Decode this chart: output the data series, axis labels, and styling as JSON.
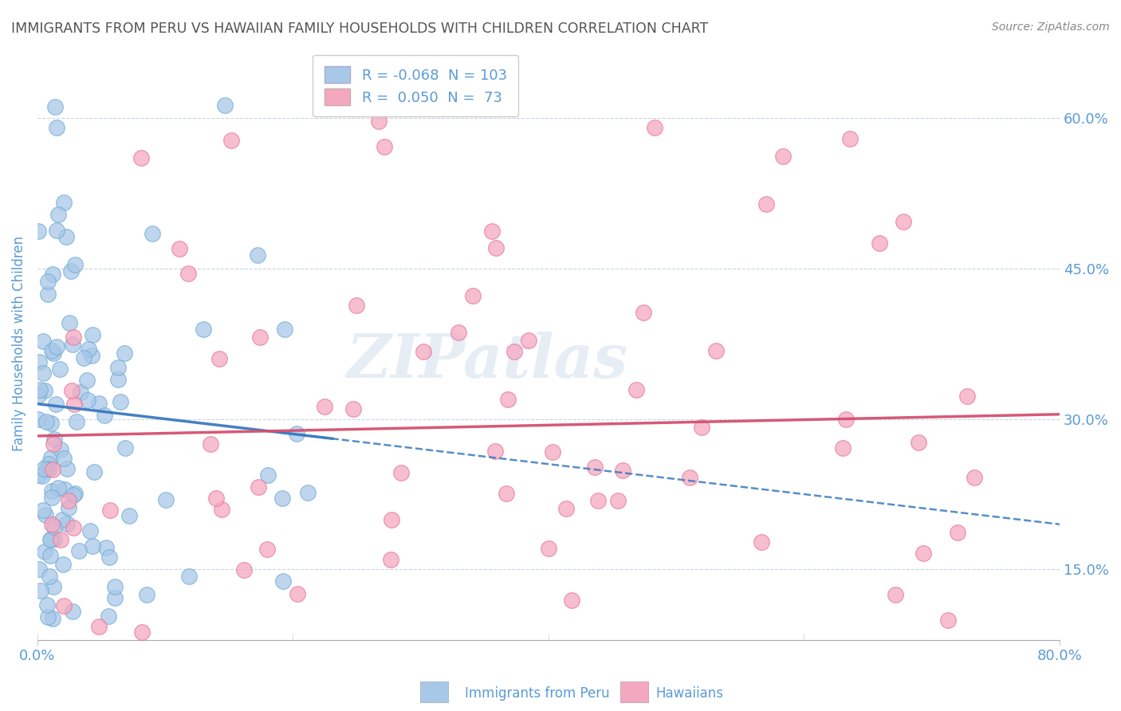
{
  "title": "IMMIGRANTS FROM PERU VS HAWAIIAN FAMILY HOUSEHOLDS WITH CHILDREN CORRELATION CHART",
  "source": "Source: ZipAtlas.com",
  "ylabel": "Family Households with Children",
  "yticks": [
    0.15,
    0.3,
    0.45,
    0.6
  ],
  "ytick_labels": [
    "15.0%",
    "30.0%",
    "45.0%",
    "60.0%"
  ],
  "xlim": [
    0.0,
    0.8
  ],
  "ylim": [
    0.08,
    0.67
  ],
  "blue_R": -0.068,
  "blue_N": 103,
  "pink_R": 0.05,
  "pink_N": 73,
  "blue_color": "#a8c8e8",
  "pink_color": "#f4a8c0",
  "blue_edge": "#6aaad4",
  "pink_edge": "#e87098",
  "trend_blue_color": "#3a7abf",
  "trend_pink_color": "#d45070",
  "background_color": "#ffffff",
  "title_color": "#555555",
  "axis_label_color": "#5b9bd5",
  "watermark": "ZIPatlas",
  "watermark_color": "#c8d8e8",
  "legend_label1": "Immigrants from Peru",
  "legend_label2": "Hawaiians"
}
